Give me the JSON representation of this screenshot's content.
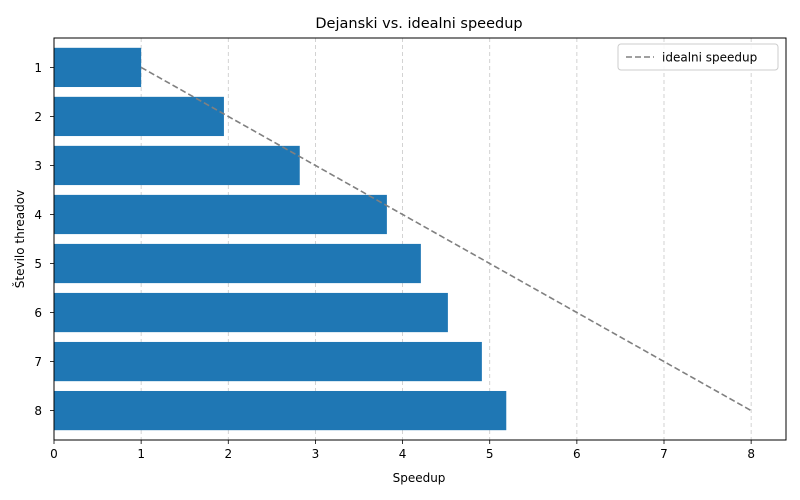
{
  "chart_data": {
    "type": "bar",
    "orientation": "horizontal",
    "title": "Dejanski vs. idealni speedup",
    "xlabel": "Speedup",
    "ylabel": "Število threadov",
    "categories": [
      "1",
      "2",
      "3",
      "4",
      "5",
      "6",
      "7",
      "8"
    ],
    "values": [
      1.0,
      1.95,
      2.82,
      3.82,
      4.21,
      4.52,
      4.91,
      5.19
    ],
    "bar_color": "#1f77b4",
    "xlim": [
      0,
      8.4
    ],
    "xticks": [
      "0",
      "1",
      "2",
      "3",
      "4",
      "5",
      "6",
      "7",
      "8"
    ],
    "grid": "x-dashed",
    "ideal_line": {
      "name": "idealni speedup",
      "x": [
        1,
        2,
        3,
        4,
        5,
        6,
        7,
        8
      ],
      "y": [
        "1",
        "2",
        "3",
        "4",
        "5",
        "6",
        "7",
        "8"
      ],
      "color": "#808080",
      "style": "dashed"
    },
    "legend_position": "top-right"
  }
}
